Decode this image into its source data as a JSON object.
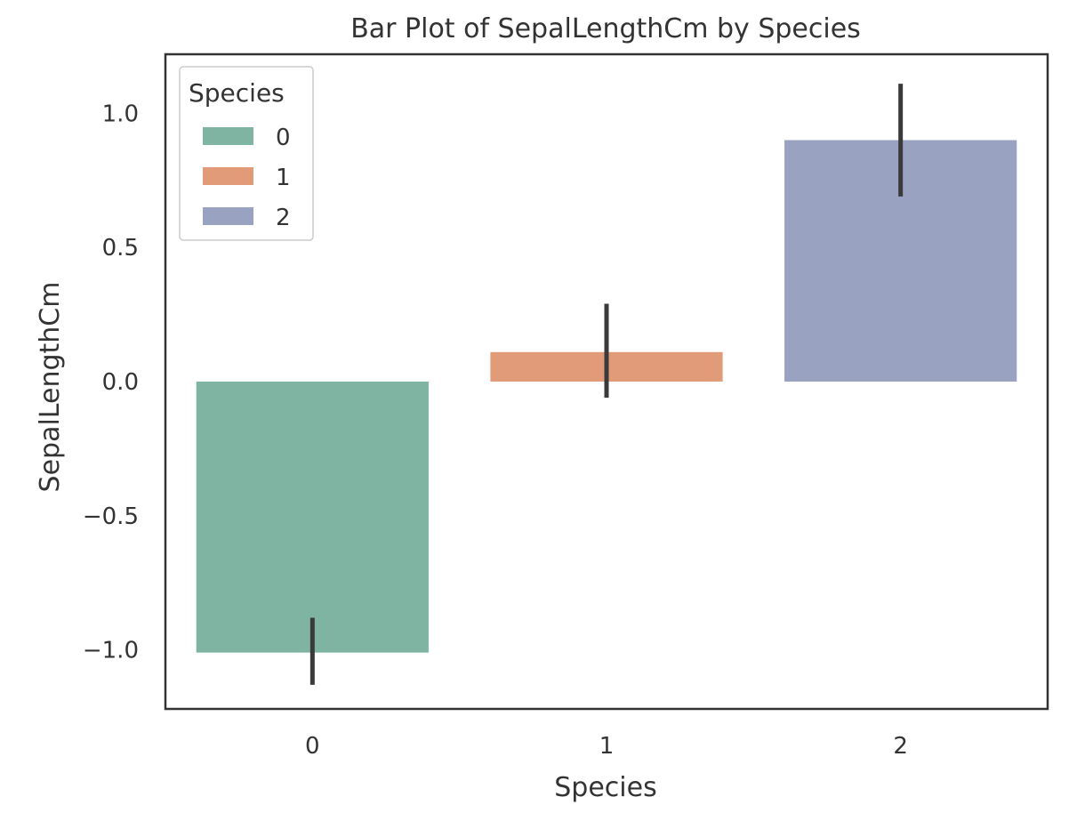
{
  "chart_data": {
    "type": "bar",
    "title": "Bar Plot of SepalLengthCm by Species",
    "xlabel": "Species",
    "ylabel": "SepalLengthCm",
    "categories": [
      "0",
      "1",
      "2"
    ],
    "values": [
      -1.01,
      0.11,
      0.9
    ],
    "error_bars": [
      [
        -1.13,
        -0.88
      ],
      [
        -0.06,
        0.29
      ],
      [
        0.69,
        1.11
      ]
    ],
    "colors": [
      "#80b4a2",
      "#e19b79",
      "#99a3c1"
    ],
    "ylim": [
      -1.22,
      1.22
    ],
    "y_ticks": [
      1.0,
      0.5,
      0.0,
      -0.5,
      -1.0
    ],
    "y_tick_labels": [
      "1.0",
      "0.5",
      "0.0",
      "−0.5",
      "−1.0"
    ],
    "grid": false,
    "legend": {
      "title": "Species",
      "placement": "top-left",
      "entries": [
        "0",
        "1",
        "2"
      ]
    }
  }
}
